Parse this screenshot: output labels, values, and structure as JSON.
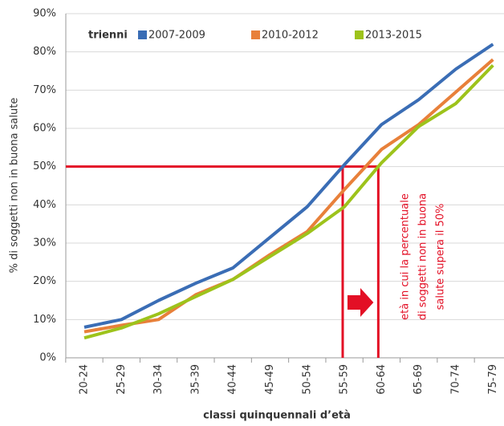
{
  "chart_data": {
    "type": "line",
    "y_label": "% di soggetti non in buona salute",
    "x_label": "classi quinquennali d’età",
    "legend_title": "trienni",
    "categories": [
      "20-24",
      "25-29",
      "30-34",
      "35-39",
      "40-44",
      "45-49",
      "50-54",
      "55-59",
      "60-64",
      "65-69",
      "70-74",
      "75-79"
    ],
    "series": [
      {
        "name": "2007-2009",
        "color": "#3a6db5",
        "values": [
          8,
          10,
          15,
          19.5,
          23.5,
          31.5,
          39.5,
          50.5,
          61,
          67.5,
          75.5,
          82
        ]
      },
      {
        "name": "2010-2012",
        "color": "#e8803a",
        "values": [
          6.8,
          8.5,
          10,
          16.5,
          20.5,
          27,
          33,
          44,
          54.5,
          61,
          69.5,
          78
        ]
      },
      {
        "name": "2013-2015",
        "color": "#9dc31b",
        "values": [
          5.2,
          7.8,
          11.5,
          16,
          20.5,
          26.5,
          32.5,
          39.5,
          51,
          60.5,
          66.5,
          76.5
        ]
      }
    ],
    "threshold": 50,
    "threshold_color": "#e30f25",
    "annotation": [
      "età in cui la percentuale",
      "di soggetti non in buona",
      "salute supera il 50%"
    ],
    "ylim": [
      0,
      90
    ],
    "yticks": [
      {
        "value": 0,
        "label": "0%"
      },
      {
        "value": 10,
        "label": "10%"
      },
      {
        "value": 20,
        "label": "20%"
      },
      {
        "value": 30,
        "label": "30%"
      },
      {
        "value": 40,
        "label": "40%"
      },
      {
        "value": 50,
        "label": "50%"
      },
      {
        "value": 60,
        "label": "60%"
      },
      {
        "value": 70,
        "label": "70%"
      },
      {
        "value": 80,
        "label": "80%"
      },
      {
        "value": 90,
        "label": "90%"
      }
    ],
    "grid": true
  }
}
